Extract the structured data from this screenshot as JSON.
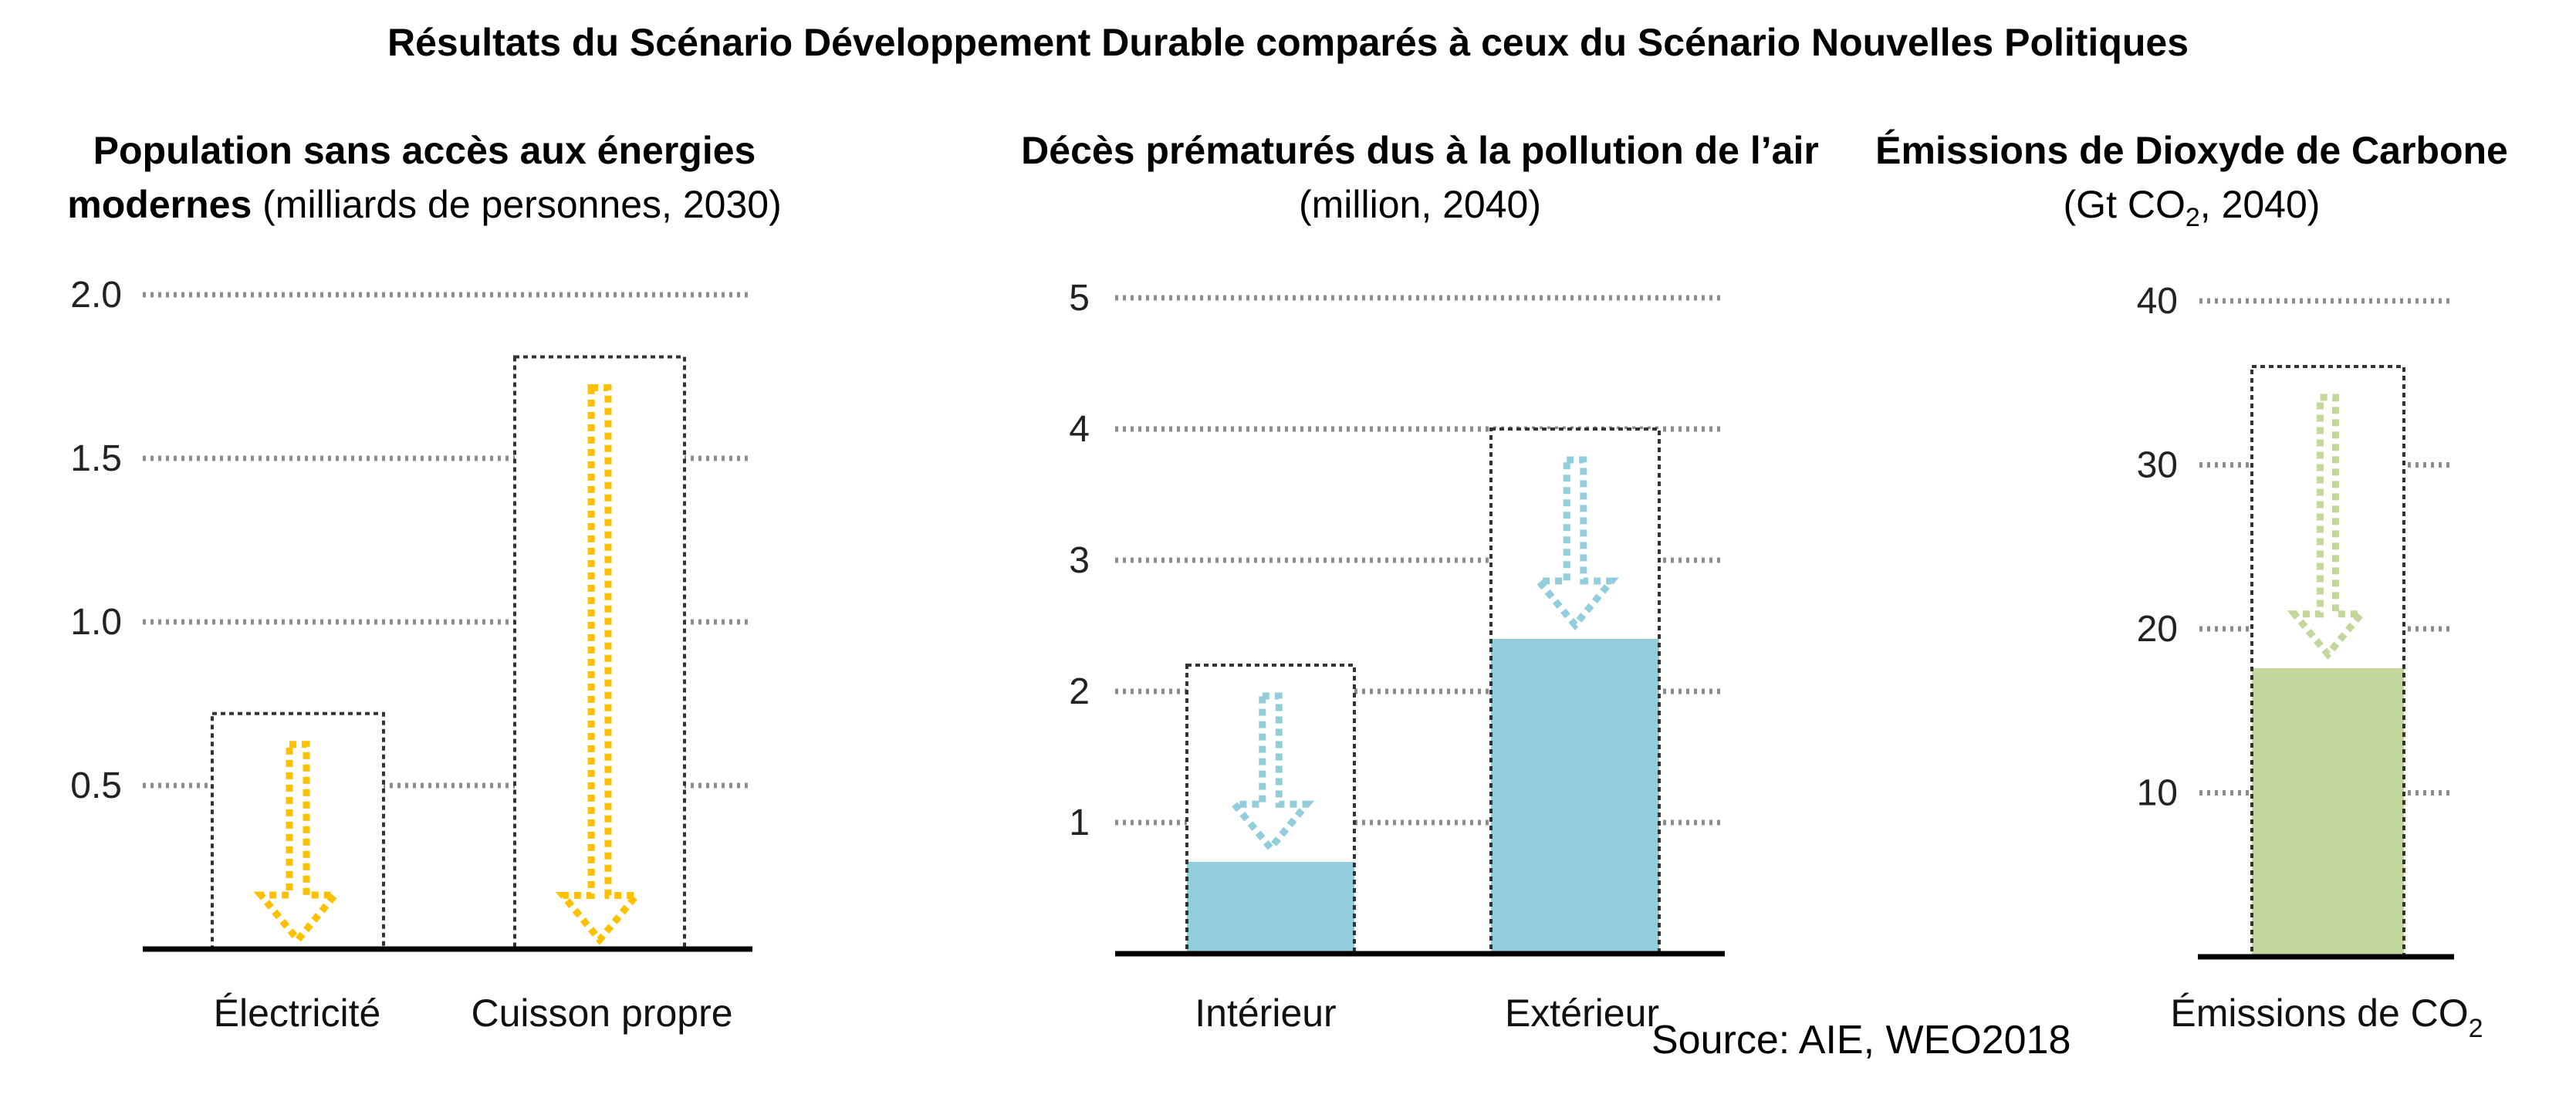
{
  "title": "Résultats du Scénario Développement Durable comparés à ceux du Scénario Nouvelles Politiques",
  "source": "Source: AIE, WEO2018",
  "colors": {
    "electricity_arrow": "#FFC000",
    "air": "#92CDDC",
    "co2": "#C3D69B",
    "co2_arrow": "#C3D69B",
    "frame": "#333333",
    "grid": "#8C8C8C"
  },
  "panels": [
    {
      "title_bold": "Population sans accès aux énergies modernes",
      "title_light": "(milliards de personnes, 2030)"
    },
    {
      "title_bold": "Décès prématurés dus à la pollution de l’air",
      "title_light": "(million, 2040)"
    },
    {
      "title_bold": "Émissions de Dioxyde de Carbone",
      "title_light_pre": "(Gt CO",
      "title_sub": "2",
      "title_light_post": ", 2040)"
    }
  ],
  "chart_data": [
    {
      "type": "bar",
      "title": "Population sans accès aux énergies modernes (milliards de personnes, 2030)",
      "categories": [
        "Électricité",
        "Cuisson propre"
      ],
      "series": [
        {
          "name": "Scénario Nouvelles Politiques",
          "values": [
            0.72,
            1.81
          ]
        },
        {
          "name": "Scénario Développement Durable",
          "values": [
            0,
            0
          ]
        }
      ],
      "yticks": [
        "0.5",
        "1.0",
        "1.5",
        "2.0"
      ],
      "ylim": [
        0,
        2.0
      ],
      "grid": true
    },
    {
      "type": "bar",
      "title": "Décès prématurés dus à la pollution de l’air (million, 2040)",
      "categories": [
        "Intérieur",
        "Extérieur"
      ],
      "series": [
        {
          "name": "Scénario Nouvelles Politiques",
          "values": [
            2.2,
            4.0
          ]
        },
        {
          "name": "Scénario Développement Durable",
          "values": [
            0.7,
            2.4
          ]
        }
      ],
      "yticks": [
        "1",
        "2",
        "3",
        "4",
        "5"
      ],
      "ylim": [
        0,
        5
      ],
      "grid": true
    },
    {
      "type": "bar",
      "title": "Émissions de Dioxyde de Carbone (Gt CO2, 2040)",
      "categories": [
        "Émissions de CO2"
      ],
      "category_label_main": "Émissions de CO",
      "category_label_sub": "2",
      "series": [
        {
          "name": "Scénario Nouvelles Politiques",
          "values": [
            36
          ]
        },
        {
          "name": "Scénario Développement Durable",
          "values": [
            17.6
          ]
        }
      ],
      "yticks": [
        "10",
        "20",
        "30",
        "40"
      ],
      "ylim": [
        0,
        40
      ],
      "grid": true
    }
  ]
}
